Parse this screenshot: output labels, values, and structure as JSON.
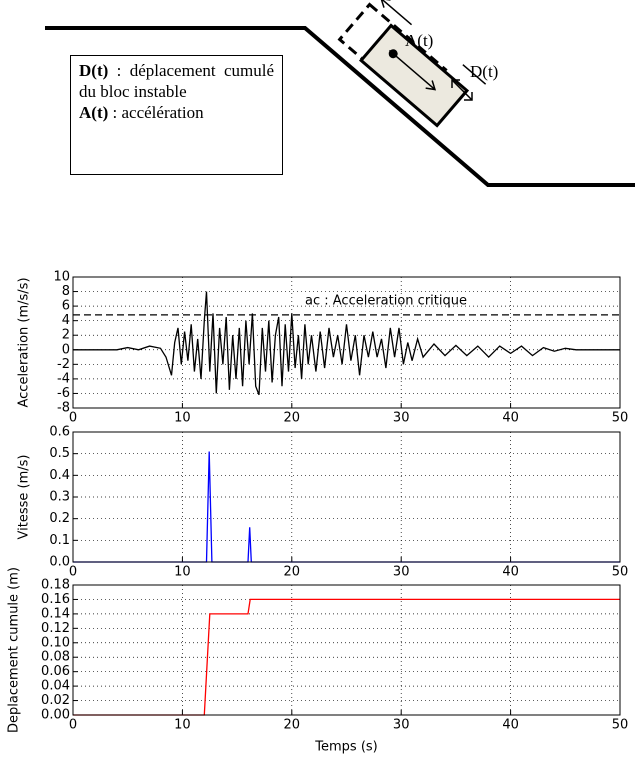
{
  "diagram": {
    "box": [
      {
        "bold": "D(t)",
        "text": ": déplacement cumulé du bloc instable"
      },
      {
        "bold": "A(t)",
        "text": ": accélération"
      }
    ],
    "label_a": "A(t)",
    "label_d": "D(t)"
  },
  "chart_data": [
    {
      "type": "line",
      "ylabel": "Acceleration (m/s/s)",
      "color": "#000000",
      "grid": true,
      "threshold": 4.8,
      "annotation": "ac : Acceleration critique",
      "xlim": [
        0,
        50
      ],
      "xticks": [
        0,
        10,
        20,
        30,
        40,
        50
      ],
      "ylim": [
        -8,
        10
      ],
      "yticks": [
        -8,
        -6,
        -4,
        -2,
        0,
        2,
        4,
        6,
        8,
        10
      ],
      "x": [
        0,
        4,
        5,
        6,
        7,
        8,
        8.5,
        9,
        9.3,
        9.6,
        9.9,
        10.2,
        10.5,
        10.8,
        11.1,
        11.4,
        11.7,
        12,
        12.2,
        12.5,
        12.8,
        13.1,
        13.4,
        13.7,
        14,
        14.3,
        14.6,
        14.9,
        15.2,
        15.5,
        15.8,
        16.1,
        16.4,
        16.7,
        17,
        17.3,
        17.6,
        17.9,
        18.2,
        18.5,
        18.8,
        19.1,
        19.4,
        19.7,
        20,
        20.3,
        20.6,
        20.9,
        21.2,
        21.5,
        21.8,
        22.2,
        22.6,
        23,
        23.4,
        23.8,
        24.2,
        24.6,
        25,
        25.4,
        25.8,
        26.2,
        26.6,
        27,
        27.4,
        27.8,
        28.2,
        28.6,
        29,
        29.4,
        29.8,
        30.2,
        30.6,
        31,
        31.5,
        32,
        33,
        34,
        35,
        36,
        37,
        38,
        39,
        40,
        41,
        42,
        43,
        44,
        45,
        46,
        50
      ],
      "values": [
        0,
        0,
        0.3,
        0,
        0.5,
        0.2,
        -1,
        -3.5,
        1,
        3,
        -2,
        2.5,
        -1.5,
        3.5,
        -3,
        1.5,
        -4,
        4,
        8,
        -3,
        5,
        -6,
        3,
        -2,
        4.5,
        -5.5,
        2,
        -4,
        3,
        -5,
        4,
        -2,
        5,
        -5,
        -6.2,
        3,
        -3,
        4,
        -4.5,
        2,
        4.5,
        -5,
        3.5,
        -3,
        5,
        -2.5,
        2,
        -4,
        3.5,
        -2,
        2,
        -3,
        2.5,
        -2.5,
        3,
        -1,
        2,
        -2,
        3.5,
        -1.5,
        2,
        -3.5,
        2,
        -1,
        2.5,
        -1,
        1.5,
        -2.5,
        3,
        -1,
        3,
        -2,
        1,
        -1.5,
        1.5,
        -1,
        0.8,
        -0.8,
        0.6,
        -0.8,
        0.5,
        -1,
        0.5,
        -0.5,
        0.5,
        -0.8,
        0.3,
        -0.2,
        0.2,
        0,
        0
      ]
    },
    {
      "type": "line",
      "ylabel": "Vitesse (m/s)",
      "color": "#0000ff",
      "grid": true,
      "xlim": [
        0,
        50
      ],
      "xticks": [
        0,
        10,
        20,
        30,
        40,
        50
      ],
      "ylim": [
        0,
        0.6
      ],
      "yticks": [
        {
          "value": 0,
          "label": "0.0"
        },
        0.1,
        0.2,
        0.3,
        0.4,
        0.5,
        0.6
      ],
      "x": [
        0,
        12.2,
        12.45,
        12.7,
        16,
        16.15,
        16.3,
        50
      ],
      "values": [
        0,
        0,
        0.51,
        0,
        0,
        0.16,
        0,
        0
      ]
    },
    {
      "type": "line",
      "ylabel": "Deplacement cumule (m)",
      "xlabel": "Temps (s)",
      "color": "#ff0000",
      "grid": true,
      "xlim": [
        0,
        50
      ],
      "xticks": [
        0,
        10,
        20,
        30,
        40,
        50
      ],
      "ylim": [
        0,
        0.18
      ],
      "yticks": [
        {
          "value": 0,
          "label": "0.00"
        },
        0.02,
        0.04,
        0.06,
        0.08,
        {
          "value": 0.1,
          "label": "0.10"
        },
        0.12,
        0.14,
        0.16,
        0.18
      ],
      "x": [
        0,
        12,
        12.5,
        16,
        16.2,
        50
      ],
      "values": [
        0,
        0,
        0.14,
        0.14,
        0.16,
        0.16
      ]
    }
  ]
}
